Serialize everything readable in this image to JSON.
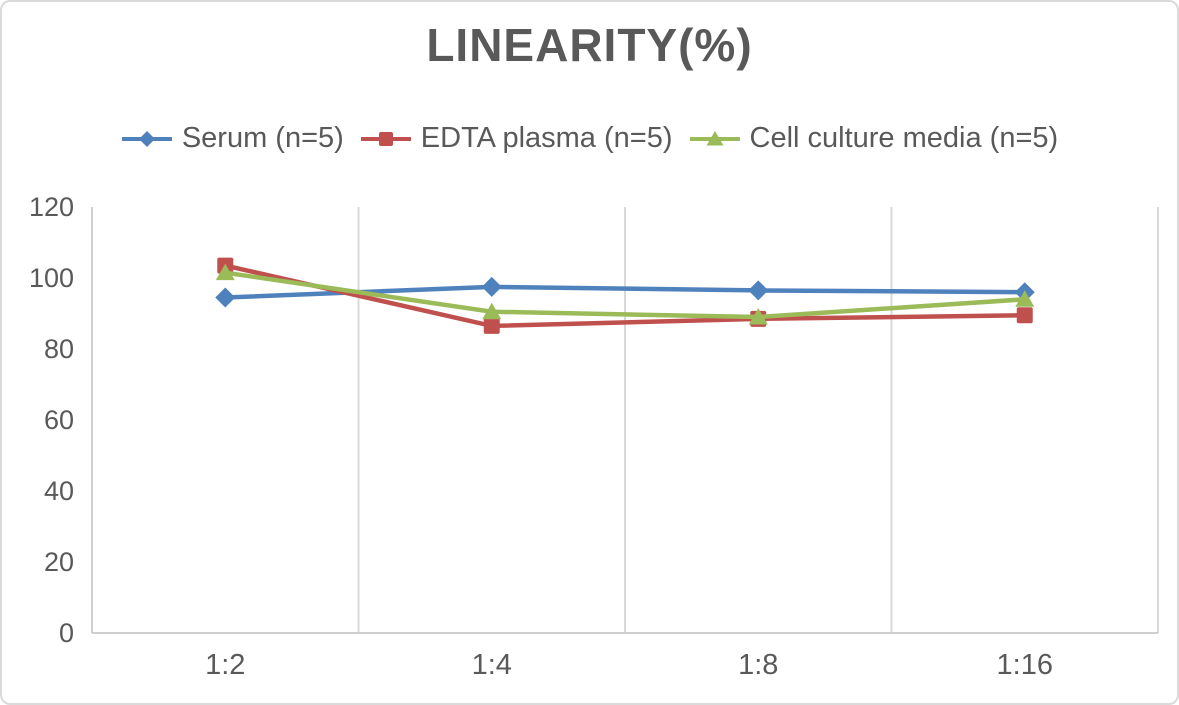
{
  "chart_data": {
    "type": "line",
    "title": "LINEARITY(%)",
    "categories": [
      "1:2",
      "1:4",
      "1:8",
      "1:16"
    ],
    "series": [
      {
        "name": "Serum (n=5)",
        "color": "#4F81BD",
        "marker": "diamond",
        "values": [
          94.5,
          97.5,
          96.5,
          96
        ]
      },
      {
        "name": "EDTA plasma (n=5)",
        "color": "#C0504D",
        "marker": "square",
        "values": [
          103.5,
          86.5,
          88.5,
          89.5
        ]
      },
      {
        "name": "Cell culture media (n=5)",
        "color": "#9BBB59",
        "marker": "triangle",
        "values": [
          101.5,
          90.5,
          89,
          94
        ]
      }
    ],
    "ylim": [
      0,
      120
    ],
    "y_ticks": [
      0,
      20,
      40,
      60,
      80,
      100,
      120
    ],
    "grid": "vertical-only",
    "legend_position": "top",
    "xlabel": "",
    "ylabel": ""
  },
  "styles": {
    "text_color": "#595959",
    "grid_color": "#d9d9d9",
    "axis_color": "#cfcfcf",
    "background": "#ffffff",
    "border_color": "#dadada"
  }
}
